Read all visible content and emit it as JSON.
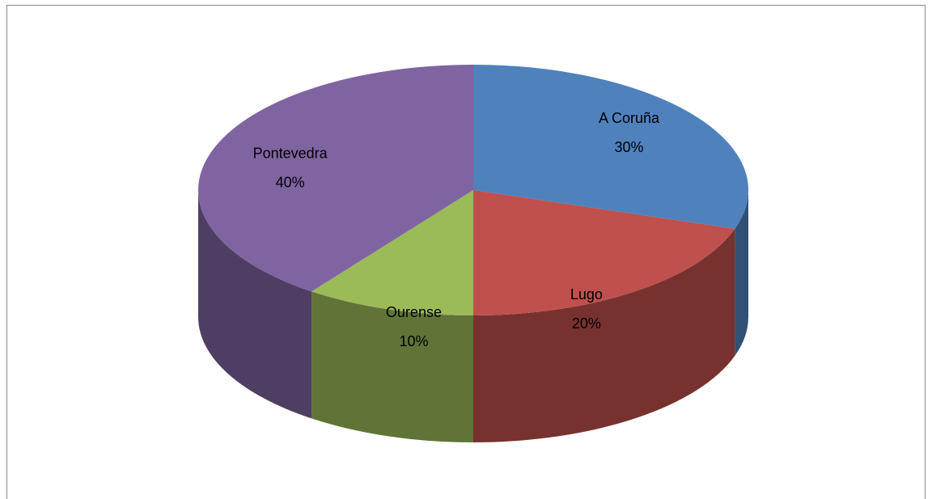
{
  "chart_data": {
    "type": "pie",
    "categories": [
      "A Coruña",
      "Lugo",
      "Ourense",
      "Pontevedra"
    ],
    "values": [
      30,
      20,
      10,
      40
    ],
    "value_labels": [
      "30%",
      "20%",
      "10%",
      "40%"
    ],
    "colors": [
      "#4f81bd",
      "#c0504d",
      "#9bbb59",
      "#8064a2"
    ]
  }
}
